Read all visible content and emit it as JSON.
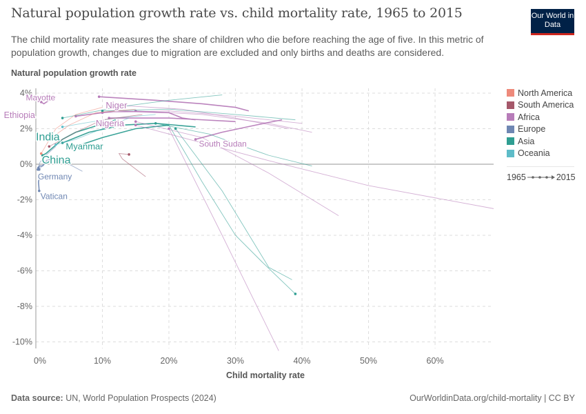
{
  "header": {
    "title": "Natural population growth rate vs. child mortality rate, 1965 to 2015",
    "subtitle": "The child mortality rate measures the share of children who die before reaching the age of five. In this metric of population growth, changes due to migration are excluded and only births and deaths are considered.",
    "logo": "Our World in Data"
  },
  "footer": {
    "source_label": "Data source:",
    "source": "UN, World Population Prospects (2024)",
    "link": "OurWorldinData.org/child-mortality | CC BY"
  },
  "legend": {
    "items": [
      {
        "label": "North America",
        "color": "#ee8a7b"
      },
      {
        "label": "South America",
        "color": "#a5586a"
      },
      {
        "label": "Africa",
        "color": "#b77cb9"
      },
      {
        "label": "Europe",
        "color": "#6f87b3"
      },
      {
        "label": "Asia",
        "color": "#2f9e92"
      },
      {
        "label": "Oceania",
        "color": "#5ebcc8"
      }
    ],
    "time_start": "1965",
    "time_end": "2015"
  },
  "chart_data": {
    "type": "scatter",
    "connected": true,
    "title": "Natural population growth rate vs. child mortality rate, 1965 to 2015",
    "xlabel": "Child mortality rate",
    "ylabel": "Natural population growth rate",
    "xlim": [
      0,
      68.8
    ],
    "ylim": [
      -10.4,
      4.2
    ],
    "x_ticks": [
      "0%",
      "10%",
      "20%",
      "30%",
      "40%",
      "50%",
      "60%"
    ],
    "x_tick_values": [
      0,
      10,
      20,
      30,
      40,
      50,
      60
    ],
    "y_ticks": [
      "4%",
      "2%",
      "0%",
      "-2%",
      "-4%",
      "-6%",
      "-8%",
      "-10%"
    ],
    "y_tick_values": [
      4,
      2,
      0,
      -2,
      -4,
      -6,
      -8,
      -10
    ],
    "grid": true,
    "legend_placement": "right",
    "series": [
      {
        "name": "Niger",
        "region": "Africa",
        "labeled": true,
        "points": [
          [
            32,
            3.0
          ],
          [
            30,
            3.2
          ],
          [
            25,
            3.4
          ],
          [
            18,
            3.6
          ],
          [
            9.5,
            3.8
          ]
        ]
      },
      {
        "name": "Nigeria",
        "region": "Africa",
        "labeled": true,
        "points": [
          [
            30,
            2.4
          ],
          [
            25,
            2.5
          ],
          [
            20,
            2.6
          ],
          [
            15,
            2.6
          ],
          [
            11,
            2.6
          ]
        ]
      },
      {
        "name": "Ethiopia",
        "region": "Africa",
        "labeled": true,
        "points": [
          [
            24,
            2.5
          ],
          [
            22,
            2.6
          ],
          [
            20,
            2.9
          ],
          [
            12,
            3.0
          ],
          [
            6,
            2.7
          ]
        ]
      },
      {
        "name": "Mayotte",
        "region": "Africa",
        "labeled": true,
        "points": [
          [
            3,
            3.8
          ],
          [
            2,
            3.6
          ],
          [
            1.2,
            3.4
          ],
          [
            0.8,
            3.5
          ]
        ]
      },
      {
        "name": "South Sudan",
        "region": "Africa",
        "labeled": true,
        "points": [
          [
            37,
            2.5
          ],
          [
            33,
            2.2
          ],
          [
            28,
            1.8
          ],
          [
            24,
            1.4
          ]
        ]
      },
      {
        "name": "India",
        "region": "Asia",
        "labeled": true,
        "points": [
          [
            24,
            2.1
          ],
          [
            18,
            2.3
          ],
          [
            13,
            2.2
          ],
          [
            8,
            1.8
          ],
          [
            4,
            1.2
          ]
        ]
      },
      {
        "name": "China",
        "region": "Asia",
        "labeled": true,
        "points": [
          [
            12,
            2.5
          ],
          [
            6,
            1.8
          ],
          [
            4,
            1.4
          ],
          [
            1.5,
            0.6
          ],
          [
            1,
            0.5
          ]
        ]
      },
      {
        "name": "Myanmar",
        "region": "Asia",
        "labeled": true,
        "points": [
          [
            20,
            2.2
          ],
          [
            15,
            2.0
          ],
          [
            10,
            1.5
          ],
          [
            6,
            1.0
          ]
        ]
      },
      {
        "name": "Germany",
        "region": "Europe",
        "labeled": true,
        "points": [
          [
            2.5,
            0.4
          ],
          [
            1.5,
            0.1
          ],
          [
            1,
            -0.1
          ],
          [
            0.5,
            -0.1
          ],
          [
            0.4,
            -0.2
          ]
        ]
      },
      {
        "name": "Vatican",
        "region": "Europe",
        "labeled": true,
        "points": [
          [
            0.5,
            -0.8
          ],
          [
            0.4,
            -1.0
          ],
          [
            0.5,
            -1.5
          ]
        ]
      },
      {
        "region": "Asia",
        "points": [
          [
            20,
            2.2
          ],
          [
            25,
            -1
          ],
          [
            30,
            -4
          ],
          [
            34,
            -5.5
          ],
          [
            39,
            -7.3
          ]
        ]
      },
      {
        "region": "Asia",
        "points": [
          [
            38.5,
            -6.5
          ],
          [
            35,
            -5.8
          ],
          [
            28,
            -1.5
          ],
          [
            21,
            2.0
          ]
        ]
      },
      {
        "region": "Africa",
        "points": [
          [
            36.5,
            -10.5
          ],
          [
            28,
            -4
          ],
          [
            20,
            2.0
          ]
        ]
      },
      {
        "region": "Africa",
        "points": [
          [
            68.8,
            -2.5
          ],
          [
            50,
            -1.2
          ],
          [
            35,
            0.2
          ],
          [
            25,
            1.2
          ],
          [
            15,
            2.2
          ]
        ]
      },
      {
        "region": "Africa",
        "points": [
          [
            45.5,
            -2.9
          ],
          [
            35,
            -0.5
          ],
          [
            25,
            1.5
          ],
          [
            15,
            2.4
          ]
        ]
      },
      {
        "region": "Africa",
        "points": [
          [
            41.5,
            1.8
          ],
          [
            35,
            2.3
          ],
          [
            25,
            2.8
          ],
          [
            15,
            3.0
          ]
        ]
      },
      {
        "region": "Africa",
        "points": [
          [
            40,
            2.3
          ],
          [
            30,
            2.7
          ],
          [
            20,
            3.0
          ],
          [
            10,
            2.9
          ]
        ]
      },
      {
        "region": "Africa",
        "points": [
          [
            38,
            2.0
          ],
          [
            30,
            2.6
          ],
          [
            22,
            3.1
          ],
          [
            13,
            3.3
          ]
        ]
      },
      {
        "region": "Asia",
        "points": [
          [
            41.5,
            -0.1
          ],
          [
            35,
            0.5
          ],
          [
            26,
            1.7
          ],
          [
            18,
            2.3
          ]
        ]
      },
      {
        "region": "Asia",
        "points": [
          [
            39,
            2.5
          ],
          [
            30,
            2.8
          ],
          [
            20,
            3.1
          ],
          [
            10,
            3.0
          ]
        ]
      },
      {
        "region": "Asia",
        "points": [
          [
            28,
            3.9
          ],
          [
            20,
            3.6
          ],
          [
            12,
            3.2
          ],
          [
            4,
            2.6
          ]
        ]
      },
      {
        "region": "Oceania",
        "points": [
          [
            18,
            2.8
          ],
          [
            12,
            2.6
          ],
          [
            7,
            2.3
          ],
          [
            4,
            2.1
          ]
        ]
      },
      {
        "region": "Oceania",
        "points": [
          [
            14,
            2.6
          ],
          [
            10,
            2.0
          ],
          [
            6,
            1.4
          ],
          [
            3,
            1.1
          ]
        ]
      },
      {
        "region": "South America",
        "points": [
          [
            16.5,
            -0.7
          ],
          [
            13,
            0.3
          ],
          [
            12.5,
            0.6
          ],
          [
            14,
            0.55
          ]
        ]
      },
      {
        "region": "South America",
        "points": [
          [
            16,
            2.8
          ],
          [
            10,
            2.5
          ],
          [
            6,
            1.8
          ],
          [
            2,
            1.0
          ]
        ]
      },
      {
        "region": "North America",
        "points": [
          [
            15,
            3.1
          ],
          [
            9,
            2.9
          ],
          [
            5,
            2.2
          ],
          [
            2,
            1.4
          ]
        ]
      },
      {
        "region": "North America",
        "points": [
          [
            10,
            3.2
          ],
          [
            6,
            2.8
          ],
          [
            3,
            2.0
          ],
          [
            0.8,
            0.6
          ]
        ]
      },
      {
        "region": "Europe",
        "points": [
          [
            7,
            -0.4
          ],
          [
            4,
            0.2
          ],
          [
            2,
            0.4
          ],
          [
            0.5,
            -0.3
          ]
        ]
      },
      {
        "region": "Europe",
        "points": [
          [
            3,
            1.0
          ],
          [
            1.5,
            0.5
          ],
          [
            0.6,
            0.1
          ],
          [
            0.3,
            -0.3
          ]
        ]
      }
    ]
  }
}
